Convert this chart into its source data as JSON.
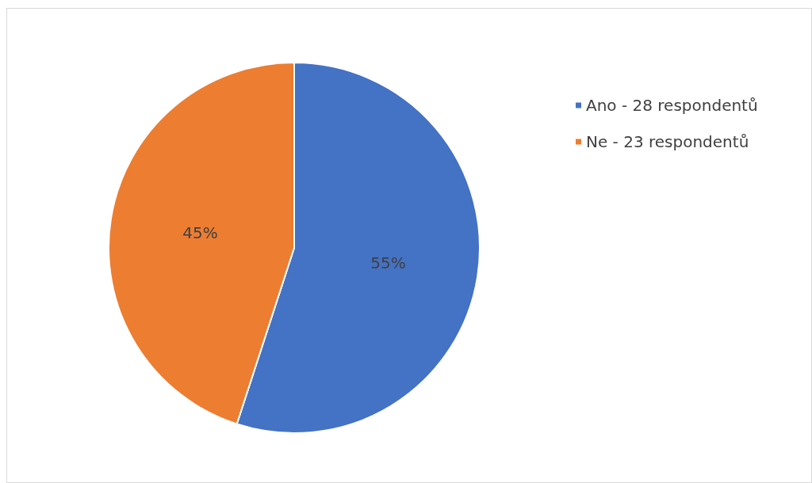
{
  "chart_data": {
    "type": "pie",
    "categories": [
      "Ano - 28 respondentů",
      "Ne - 23 respondentů"
    ],
    "values": [
      55,
      45
    ],
    "value_labels": [
      "55%",
      "45%"
    ],
    "colors": [
      "#4472c4",
      "#ed7d31"
    ],
    "legend": "right"
  }
}
